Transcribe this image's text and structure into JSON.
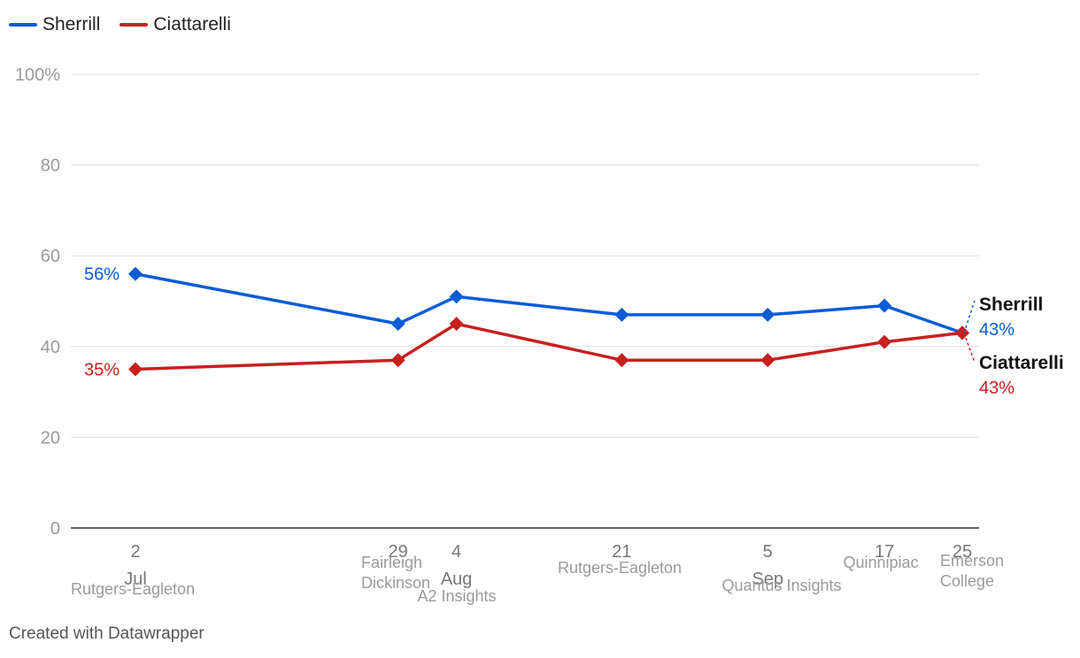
{
  "legend": {
    "items": [
      {
        "label": "Sherrill",
        "color": "#0a5cd6"
      },
      {
        "label": "Ciattarelli",
        "color": "#c8201f"
      }
    ]
  },
  "footer": {
    "credit": "Created with Datawrapper"
  },
  "chart_data": {
    "type": "line",
    "title": "",
    "xlabel": "",
    "ylabel": "",
    "ylim": [
      0,
      100
    ],
    "yticks": [
      "100%",
      "80",
      "60",
      "40",
      "20",
      "0"
    ],
    "ytick_values": [
      100,
      80,
      60,
      40,
      20,
      0
    ],
    "grid": true,
    "x_axis_type": "date",
    "x": [
      "2025-07-02",
      "2025-07-29",
      "2025-08-04",
      "2025-08-21",
      "2025-09-05",
      "2025-09-17",
      "2025-09-25"
    ],
    "x_day_labels": [
      "2",
      "29",
      "4",
      "21",
      "5",
      "17",
      "25"
    ],
    "month_labels": [
      {
        "label": "Jul",
        "date": "2025-07-02"
      },
      {
        "label": "Aug",
        "date": "2025-08-04"
      },
      {
        "label": "Sep",
        "date": "2025-09-05"
      }
    ],
    "pollster_labels": [
      {
        "date": "2025-07-02",
        "lines": [
          "Rutgers-Eagleton"
        ]
      },
      {
        "date": "2025-07-29",
        "lines": [
          "Fairleigh",
          "Dickinson"
        ]
      },
      {
        "date": "2025-08-04",
        "lines": [
          "A2 Insights"
        ]
      },
      {
        "date": "2025-08-21",
        "lines": [
          "Rutgers-Eagleton"
        ]
      },
      {
        "date": "2025-09-05",
        "lines": [
          "Quantus Insights"
        ]
      },
      {
        "date": "2025-09-17",
        "lines": [
          "Quinnipiac"
        ]
      },
      {
        "date": "2025-09-25",
        "lines": [
          "Emerson",
          "College"
        ]
      }
    ],
    "series": [
      {
        "name": "Sherrill",
        "color": "#0a5cd6",
        "values": [
          56,
          45,
          51,
          47,
          47,
          49,
          43
        ],
        "start_label": "56%",
        "end_label": "43%"
      },
      {
        "name": "Ciattarelli",
        "color": "#c8201f",
        "values": [
          35,
          37,
          45,
          37,
          37,
          41,
          43
        ],
        "start_label": "35%",
        "end_label": "43%"
      }
    ]
  }
}
